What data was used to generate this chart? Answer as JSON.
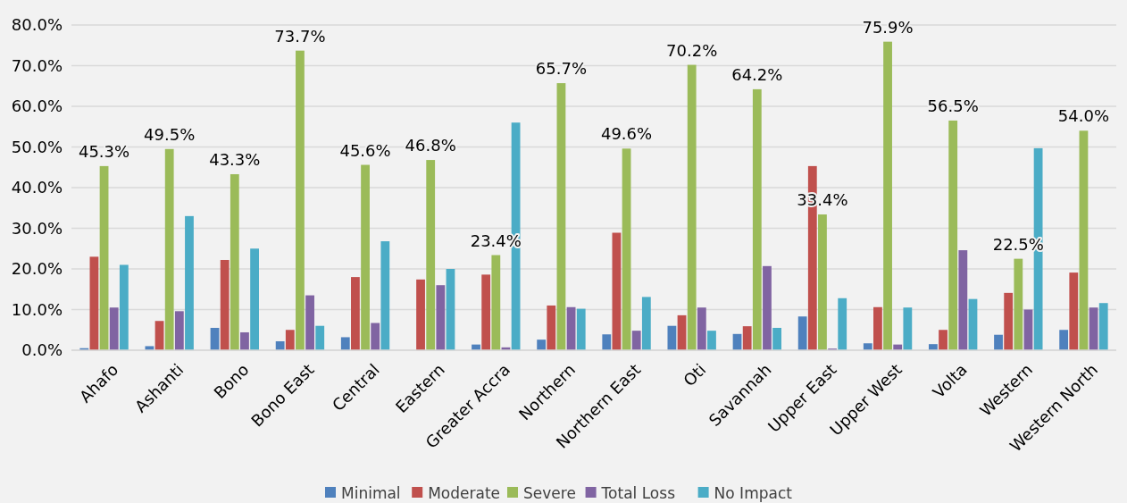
{
  "chart_data": {
    "type": "bar",
    "categories": [
      "Ahafo",
      "Ashanti",
      "Bono",
      "Bono East",
      "Central",
      "Eastern",
      "Greater Accra",
      "Northern",
      "Northern East",
      "Oti",
      "Savannah",
      "Upper East",
      "Upper West",
      "Volta",
      "Western",
      "Western North"
    ],
    "series": [
      {
        "name": "Minimal",
        "color": "#4f81bd",
        "values": [
          0.5,
          1,
          5.5,
          2.2,
          3.2,
          0,
          1.4,
          2.6,
          3.9,
          6,
          4,
          8.3,
          1.7,
          1.5,
          3.8,
          5
        ]
      },
      {
        "name": "Moderate",
        "color": "#c0504d",
        "values": [
          23,
          7.2,
          22.2,
          5,
          18,
          17.4,
          18.6,
          11,
          28.9,
          8.6,
          5.9,
          45.3,
          10.6,
          5,
          14.1,
          19.1
        ]
      },
      {
        "name": "Severe",
        "color": "#9bbb59",
        "values": [
          45.3,
          49.5,
          43.3,
          73.7,
          45.6,
          46.8,
          23.4,
          65.7,
          49.6,
          70.2,
          64.2,
          33.4,
          75.9,
          56.5,
          22.5,
          54
        ],
        "value_labels": [
          "45.3%",
          "49.5%",
          "43.3%",
          "73.7%",
          "45.6%",
          "46.8%",
          "23.4%",
          "65.7%",
          "49.6%",
          "70.2%",
          "64.2%",
          "33.4%",
          "75.9%",
          "56.5%",
          "22.5%",
          "54.0%"
        ]
      },
      {
        "name": "Total Loss",
        "color": "#8064a2",
        "values": [
          10.5,
          9.6,
          4.4,
          13.5,
          6.7,
          16,
          0.7,
          10.6,
          4.8,
          10.5,
          20.7,
          0.4,
          1.4,
          24.6,
          10,
          10.5
        ]
      },
      {
        "name": "No Impact",
        "color": "#4bacc6",
        "values": [
          21,
          33,
          25,
          6,
          26.8,
          20,
          56,
          10.2,
          13.1,
          4.8,
          5.5,
          12.8,
          10.5,
          12.6,
          49.7,
          11.6
        ]
      }
    ],
    "ylim": [
      0,
      80
    ],
    "yticks": [
      {
        "value": 0,
        "label": "0.0%"
      },
      {
        "value": 10,
        "label": "10.0%"
      },
      {
        "value": 20,
        "label": "20.0%"
      },
      {
        "value": 30,
        "label": "30.0%"
      },
      {
        "value": 40,
        "label": "40.0%"
      },
      {
        "value": 50,
        "label": "50.0%"
      },
      {
        "value": 60,
        "label": "60.0%"
      },
      {
        "value": 70,
        "label": "70.0%"
      },
      {
        "value": 80,
        "label": "80.0%"
      }
    ],
    "grid": "y",
    "legend": "bottom"
  }
}
